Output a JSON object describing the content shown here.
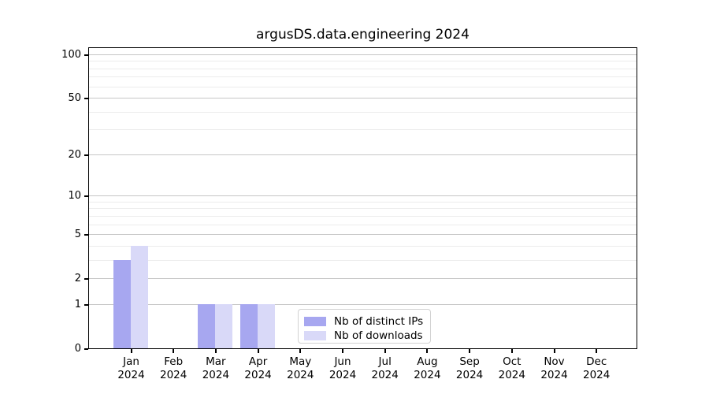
{
  "title": "argusDS.data.engineering 2024",
  "chart_data": {
    "type": "bar",
    "title": "argusDS.data.engineering 2024",
    "x_months": [
      "Jan",
      "Feb",
      "Mar",
      "Apr",
      "May",
      "Jun",
      "Jul",
      "Aug",
      "Sep",
      "Oct",
      "Nov",
      "Dec"
    ],
    "x_year": "2024",
    "series": [
      {
        "name": "Nb of distinct IPs",
        "color": "#a7a7f0",
        "values": [
          3,
          0,
          1,
          1,
          0,
          0,
          0,
          0,
          0,
          0,
          0,
          0
        ]
      },
      {
        "name": "Nb of downloads",
        "color": "#d9d9f8",
        "values": [
          4,
          0,
          1,
          1,
          0,
          0,
          0,
          0,
          0,
          0,
          0,
          0
        ]
      }
    ],
    "yscale": "log1p",
    "ylim": [
      0,
      113
    ],
    "y_major_ticks": [
      0,
      1,
      2,
      5,
      10,
      20,
      50,
      100
    ],
    "y_minor_ticks": [
      3,
      4,
      6,
      7,
      8,
      9,
      30,
      40,
      60,
      70,
      80,
      90
    ],
    "grid": "horizontal",
    "legend_position": "lower center"
  },
  "colors": {
    "axis": "#000000",
    "major_grid": "#c6c6c6",
    "minor_grid": "#ececec",
    "legend_border": "#d2d2d2"
  }
}
